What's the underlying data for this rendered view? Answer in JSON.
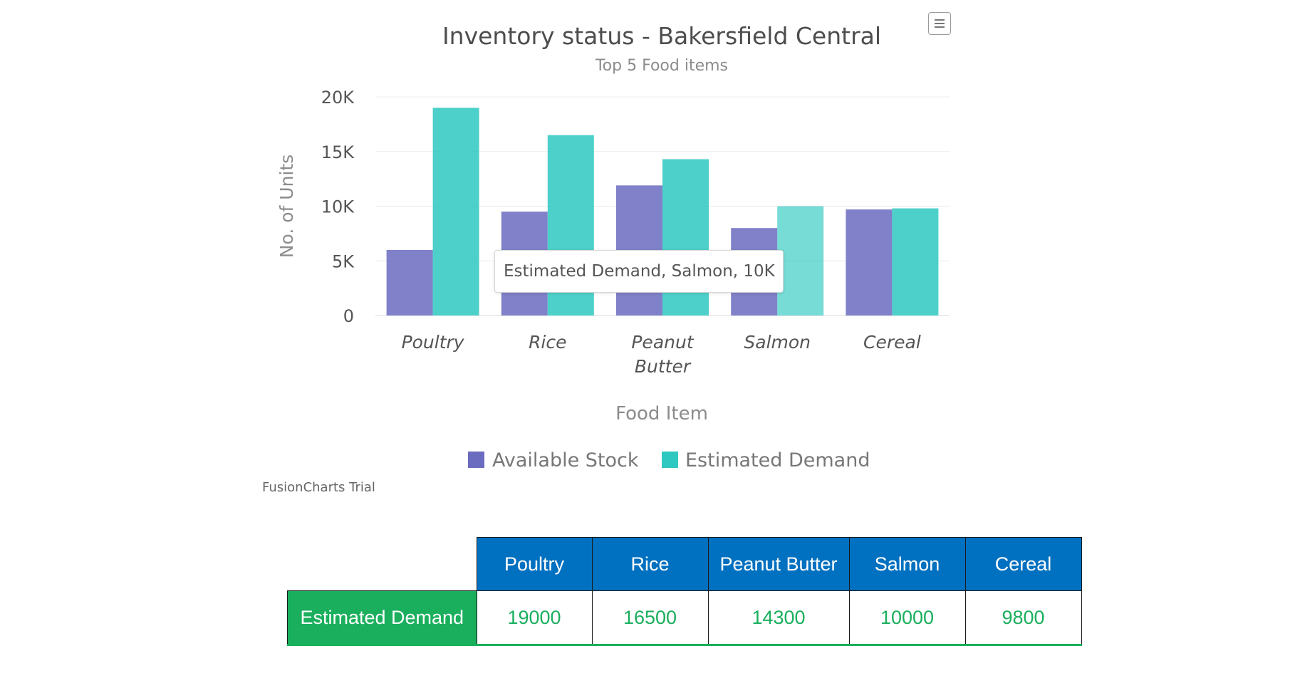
{
  "chart_data": {
    "type": "bar",
    "title": "Inventory status - Bakersfield Central",
    "subtitle": "Top 5 Food items",
    "xlabel": "Food Item",
    "ylabel": "No. of Units",
    "categories": [
      "Poultry",
      "Rice",
      "Peanut Butter",
      "Salmon",
      "Cereal"
    ],
    "category_lines": [
      [
        "Poultry"
      ],
      [
        "Rice"
      ],
      [
        "Peanut",
        "Butter"
      ],
      [
        "Salmon"
      ],
      [
        "Cereal"
      ]
    ],
    "series": [
      {
        "name": "Available Stock",
        "values": [
          6000,
          9500,
          11900,
          8000,
          9700
        ],
        "color": "#6b6bbf"
      },
      {
        "name": "Estimated Demand",
        "values": [
          19000,
          16500,
          14300,
          10000,
          9800
        ],
        "color": "#2ec8c0"
      }
    ],
    "ylim": [
      0,
      20000
    ],
    "yticks": [
      0,
      5000,
      10000,
      15000,
      20000
    ],
    "ytick_labels": [
      "0",
      "5K",
      "10K",
      "15K",
      "20K"
    ],
    "grid": true,
    "legend_position": "bottom-center",
    "highlighted": {
      "series": 1,
      "category": 3
    }
  },
  "tooltip": "Estimated Demand, Salmon, 10K",
  "trial_label": "FusionCharts Trial",
  "menu_icon": "hamburger-menu-icon",
  "table": {
    "headers": [
      "Poultry",
      "Rice",
      "Peanut Butter",
      "Salmon",
      "Cereal"
    ],
    "row_label": "Estimated Demand",
    "values": [
      "19000",
      "16500",
      "14300",
      "10000",
      "9800"
    ],
    "header_color": "#0070c0",
    "row_color": "#1aaf5d"
  }
}
